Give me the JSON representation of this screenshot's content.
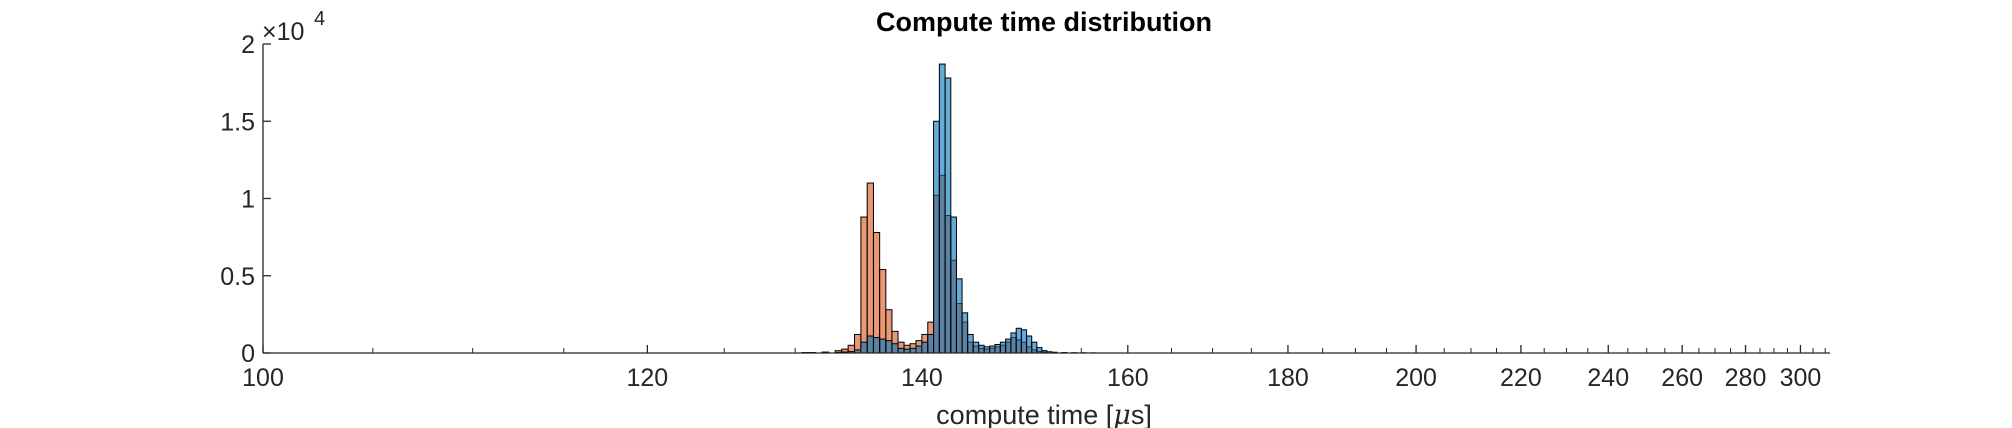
{
  "chart_data": {
    "type": "bar",
    "title": "Compute time distribution",
    "xlabel": "compute time [μs]",
    "xlabel_parts": {
      "before": "compute time [",
      "symbol": "μ",
      "after": "s]"
    },
    "ylabel": "",
    "x_scale": "reciprocal",
    "xlim": [
      100,
      312
    ],
    "ylim": [
      0,
      20000
    ],
    "y_multiplier": {
      "base": "×10",
      "exponent": "4"
    },
    "x_ticks": [
      100,
      120,
      140,
      160,
      180,
      200,
      220,
      240,
      260,
      280,
      300
    ],
    "y_ticks": [
      0,
      0.5,
      1,
      1.5,
      2
    ],
    "y_tick_labels": [
      "0",
      "0.5",
      "1",
      "1.5",
      "2"
    ],
    "grid": false,
    "bin_width": 0.5,
    "colors": {
      "series1": "#0072BD",
      "series2": "#D95319",
      "edge": "#000000",
      "axis": "#262626"
    },
    "series": [
      {
        "color": "#0072BD",
        "bins": [
          [
            130.5,
            30
          ],
          [
            131,
            20
          ],
          [
            132,
            15
          ],
          [
            133,
            40
          ],
          [
            133.5,
            60
          ],
          [
            134,
            90
          ],
          [
            134.5,
            200
          ],
          [
            135,
            700
          ],
          [
            135.5,
            1100
          ],
          [
            136,
            1000
          ],
          [
            136.5,
            900
          ],
          [
            137,
            800
          ],
          [
            137.5,
            600
          ],
          [
            138,
            300
          ],
          [
            138.5,
            250
          ],
          [
            139,
            300
          ],
          [
            139.5,
            450
          ],
          [
            140,
            700
          ],
          [
            140.5,
            1200
          ],
          [
            141,
            15000
          ],
          [
            141.5,
            18700
          ],
          [
            142,
            17800
          ],
          [
            142.5,
            8800
          ],
          [
            143,
            4800
          ],
          [
            143.5,
            2600
          ],
          [
            144,
            1200
          ],
          [
            144.5,
            700
          ],
          [
            145,
            500
          ],
          [
            145.5,
            400
          ],
          [
            146,
            450
          ],
          [
            146.5,
            550
          ],
          [
            147,
            700
          ],
          [
            147.5,
            900
          ],
          [
            148,
            1300
          ],
          [
            148.5,
            1600
          ],
          [
            149,
            1500
          ],
          [
            149.5,
            1100
          ],
          [
            150,
            700
          ],
          [
            150.5,
            350
          ],
          [
            151,
            150
          ],
          [
            151.5,
            80
          ],
          [
            152,
            50
          ],
          [
            153,
            30
          ],
          [
            154,
            20
          ],
          [
            155,
            15
          ],
          [
            156,
            10
          ]
        ]
      },
      {
        "color": "#D95319",
        "bins": [
          [
            131,
            30
          ],
          [
            132,
            60
          ],
          [
            133,
            150
          ],
          [
            133.5,
            250
          ],
          [
            134,
            500
          ],
          [
            134.5,
            1200
          ],
          [
            135,
            8800
          ],
          [
            135.5,
            11000
          ],
          [
            136,
            7800
          ],
          [
            136.5,
            5400
          ],
          [
            137,
            2800
          ],
          [
            137.5,
            1400
          ],
          [
            138,
            700
          ],
          [
            138.5,
            500
          ],
          [
            139,
            600
          ],
          [
            139.5,
            800
          ],
          [
            140,
            1200
          ],
          [
            140.5,
            2000
          ],
          [
            141,
            10200
          ],
          [
            141.5,
            11500
          ],
          [
            142,
            8900
          ],
          [
            142.5,
            6000
          ],
          [
            143,
            3200
          ],
          [
            143.5,
            2000
          ],
          [
            144,
            700
          ],
          [
            144.5,
            450
          ],
          [
            145,
            300
          ],
          [
            145.5,
            250
          ],
          [
            146,
            300
          ],
          [
            146.5,
            400
          ],
          [
            147,
            500
          ],
          [
            147.5,
            700
          ],
          [
            148,
            1000
          ],
          [
            148.5,
            850
          ],
          [
            149,
            700
          ],
          [
            149.5,
            400
          ],
          [
            150,
            200
          ],
          [
            150.5,
            100
          ],
          [
            151,
            60
          ],
          [
            152,
            30
          ],
          [
            153,
            15
          ]
        ]
      }
    ]
  }
}
